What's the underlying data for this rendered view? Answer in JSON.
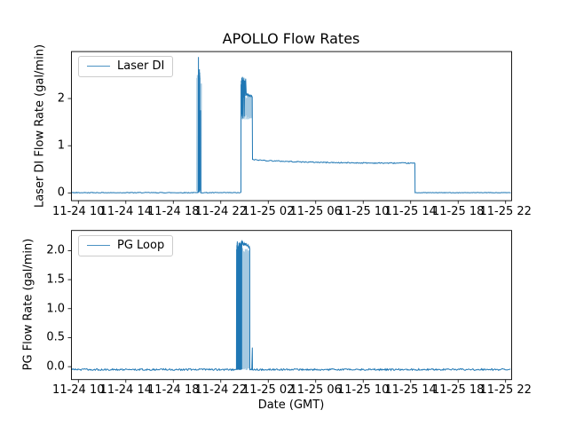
{
  "title": "APOLLO Flow Rates",
  "x_axis": {
    "label": "Date (GMT)",
    "ticks": [
      {
        "v": 10,
        "label": "11-24 10"
      },
      {
        "v": 14,
        "label": "11-24 14"
      },
      {
        "v": 18,
        "label": "11-24 18"
      },
      {
        "v": 22,
        "label": "11-24 22"
      },
      {
        "v": 26,
        "label": "11-25 02"
      },
      {
        "v": 30,
        "label": "11-25 06"
      },
      {
        "v": 34,
        "label": "11-25 10"
      },
      {
        "v": 38,
        "label": "11-25 14"
      },
      {
        "v": 42,
        "label": "11-25 18"
      },
      {
        "v": 46,
        "label": "11-25 22"
      }
    ]
  },
  "colors": {
    "line": "#1f77b4",
    "spine": "#000000",
    "text": "#000000",
    "legend_border": "#cccccc",
    "background": "#ffffff"
  },
  "chart_data": [
    {
      "type": "line",
      "name": "laser_di",
      "legend": "Laser DI",
      "ylabel": "Laser DI Flow Rate (gal/min)",
      "xlim": [
        9.38,
        46.47
      ],
      "ylim": [
        -0.155,
        3.005
      ],
      "yticks": [
        {
          "v": 0,
          "label": "0"
        },
        {
          "v": 1,
          "label": "1"
        },
        {
          "v": 2,
          "label": "2"
        }
      ],
      "description": "Flow 0 gal/min from 11-24 09:23; spike cluster to 2.88 near 11-24 20:10; zero until ~11-24 23:40; oscillating burst 1.6-2.45 until ~11-25 00:40; then plateau 0.70 slowly decaying to 0.62 until 11-25 14:20; zero afterwards.",
      "series_segments": [
        {
          "type": "flat",
          "t0": 9.38,
          "t1": 20.08,
          "v": 0.005,
          "noise": 0.007,
          "step": 0.06
        },
        {
          "type": "pts",
          "points": [
            [
              20.1,
              0.01
            ],
            [
              20.12,
              2.88
            ],
            [
              20.13,
              0.6
            ],
            [
              20.14,
              2.3
            ],
            [
              20.15,
              0.1
            ],
            [
              20.18,
              0.02
            ],
            [
              20.2,
              2.62
            ],
            [
              20.21,
              1.2
            ],
            [
              20.22,
              2.55
            ],
            [
              20.24,
              0.05
            ],
            [
              20.3,
              1.75
            ],
            [
              20.31,
              0.03
            ]
          ]
        },
        {
          "type": "flat",
          "t0": 20.32,
          "t1": 23.68,
          "v": 0.005,
          "noise": 0.007,
          "step": 0.06
        },
        {
          "type": "pts",
          "points": [
            [
              23.7,
              0.02
            ],
            [
              23.705,
              2.3
            ],
            [
              23.72,
              1.75
            ],
            [
              23.73,
              2.38
            ],
            [
              23.75,
              1.62
            ],
            [
              23.77,
              2.44
            ],
            [
              23.79,
              1.66
            ],
            [
              23.81,
              2.15
            ],
            [
              23.83,
              2.46
            ],
            [
              23.86,
              1.58
            ],
            [
              23.89,
              2.4
            ],
            [
              23.92,
              2.02
            ],
            [
              23.95,
              2.44
            ],
            [
              23.98,
              1.62
            ],
            [
              24.02,
              2.38
            ],
            [
              24.06,
              2.05
            ],
            [
              24.1,
              2.42
            ],
            [
              24.15,
              2.08
            ],
            [
              24.2,
              2.1
            ],
            [
              24.25,
              2.06
            ],
            [
              24.3,
              2.09
            ],
            [
              24.35,
              2.05
            ],
            [
              24.4,
              2.08
            ],
            [
              24.45,
              2.05
            ],
            [
              24.5,
              2.07
            ],
            [
              24.55,
              2.04
            ],
            [
              24.6,
              2.06
            ],
            [
              24.65,
              2.03
            ],
            [
              24.67,
              0.71
            ]
          ]
        },
        {
          "type": "decay",
          "t0": 24.68,
          "t1": 38.35,
          "v0": 0.705,
          "v1": 0.625,
          "noise": 0.011,
          "step": 0.07
        },
        {
          "type": "pts",
          "points": [
            [
              38.36,
              0.62
            ],
            [
              38.37,
              0.005
            ]
          ]
        },
        {
          "type": "flat",
          "t0": 38.4,
          "t1": 46.47,
          "v": 0.005,
          "noise": 0.005,
          "step": 0.06
        }
      ],
      "light_segments": [
        [
          {
            "type": "osc",
            "t0": 19.97,
            "t1": 20.38,
            "lo": 0.03,
            "hi": 2.45,
            "jl": 0.03,
            "jh": 0.15,
            "step": 0.016
          }
        ],
        [
          {
            "type": "pts",
            "points": [
              [
                23.7,
                0.03
              ]
            ]
          },
          {
            "type": "osc",
            "t0": 23.7,
            "t1": 24.64,
            "lo": 1.6,
            "hi": 2.02,
            "jl": 0.05,
            "jh": 0.04,
            "step": 0.014
          }
        ]
      ]
    },
    {
      "type": "line",
      "name": "pg_loop",
      "legend": "PG Loop",
      "ylabel": "PG Flow Rate (gal/min)",
      "xlim": [
        9.38,
        46.47
      ],
      "ylim": [
        -0.215,
        2.355
      ],
      "yticks": [
        {
          "v": 0.0,
          "label": "0.0"
        },
        {
          "v": 0.5,
          "label": "0.5"
        },
        {
          "v": 1.0,
          "label": "1.0"
        },
        {
          "v": 1.5,
          "label": "1.5"
        },
        {
          "v": 2.0,
          "label": "2.0"
        }
      ],
      "description": "Flow about -0.05 gal/min baseline; rapid full-range oscillation block from ~11-24 23:20 reaching 2.1-2.18; plateau ~2.1 until ~11-25 00:27; drop back with brief spike ~0.33 at ~00:40; baseline -0.05 afterwards.",
      "series_segments": [
        {
          "type": "flat",
          "t0": 9.38,
          "t1": 23.3,
          "v": -0.05,
          "noise": 0.014,
          "step": 0.06
        },
        {
          "type": "osc",
          "t0": 23.32,
          "t1": 23.78,
          "lo": -0.045,
          "hi": 2.09,
          "jl": 0.01,
          "jh": 0.07,
          "step": 0.011
        },
        {
          "type": "pts",
          "points": [
            [
              23.79,
              2.18
            ],
            [
              23.81,
              2.12
            ],
            [
              23.84,
              2.16
            ],
            [
              23.87,
              2.1
            ]
          ]
        },
        {
          "type": "flat",
          "t0": 23.88,
          "t1": 24.2,
          "v": 2.11,
          "noise": 0.025,
          "step": 0.02
        },
        {
          "type": "pts",
          "points": [
            [
              24.25,
              2.08
            ],
            [
              24.3,
              2.1
            ],
            [
              24.35,
              2.05
            ],
            [
              24.4,
              2.07
            ],
            [
              24.44,
              2.03
            ],
            [
              24.45,
              -0.05
            ]
          ]
        },
        {
          "type": "flat",
          "t0": 24.46,
          "t1": 24.64,
          "v": -0.05,
          "noise": 0.012,
          "step": 0.05
        },
        {
          "type": "pts",
          "points": [
            [
              24.66,
              0.33
            ],
            [
              24.67,
              -0.05
            ]
          ]
        },
        {
          "type": "flat",
          "t0": 24.7,
          "t1": 46.47,
          "v": -0.05,
          "noise": 0.014,
          "step": 0.06
        }
      ],
      "light_segments": [
        [
          {
            "type": "osc",
            "t0": 23.76,
            "t1": 24.42,
            "lo": -0.04,
            "hi": 2.0,
            "jl": 0.02,
            "jh": 0.05,
            "step": 0.02
          }
        ]
      ]
    }
  ]
}
